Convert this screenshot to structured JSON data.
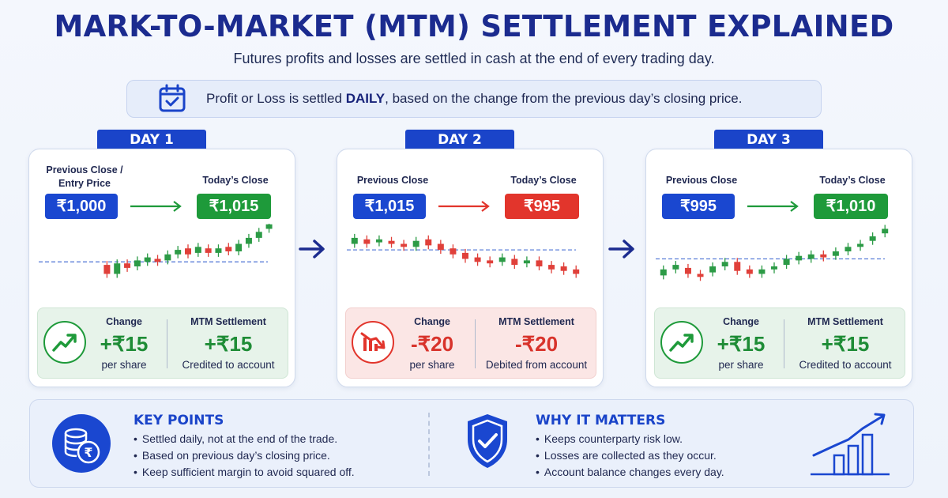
{
  "title": "MARK-TO-MARKET (MTM) SETTLEMENT EXPLAINED",
  "subtitle": "Futures profits and losses are settled in cash at the end of every trading day.",
  "banner": {
    "icon": "calendar-check-icon",
    "text_pre": "Profit or Loss is settled ",
    "text_bold": "DAILY",
    "text_post": ", based on the change from the previous day’s closing price."
  },
  "colors": {
    "primary": "#1a44c9",
    "gain": "#1e9a3a",
    "loss": "#e2352c",
    "navy": "#1b2b8f"
  },
  "days": [
    {
      "label": "DAY 1",
      "prev_label": "Previous Close / Entry Price",
      "prev_line1": "Previous Close /",
      "prev_line2": "Entry Price",
      "prev_value": "₹1,000",
      "today_label": "Today’s Close",
      "today_value": "₹1,015",
      "direction": "gain",
      "change_label": "Change",
      "change_value": "+₹15",
      "change_sub": "per share",
      "mtm_label": "MTM Settlement",
      "mtm_value": "+₹15",
      "mtm_sub": "Credited to account"
    },
    {
      "label": "DAY 2",
      "prev_line1": "Previous Close",
      "prev_line2": "",
      "prev_value": "₹1,015",
      "today_label": "Today’s Close",
      "today_value": "₹995",
      "direction": "loss",
      "change_label": "Change",
      "change_value": "-₹20",
      "change_sub": "per share",
      "mtm_label": "MTM Settlement",
      "mtm_value": "-₹20",
      "mtm_sub": "Debited from account"
    },
    {
      "label": "DAY 3",
      "prev_line1": "Previous Close",
      "prev_line2": "",
      "prev_value": "₹995",
      "today_label": "Today’s Close",
      "today_value": "₹1,010",
      "direction": "gain",
      "change_label": "Change",
      "change_value": "+₹15",
      "change_sub": "per share",
      "mtm_label": "MTM Settlement",
      "mtm_value": "+₹15",
      "mtm_sub": "Credited to account"
    }
  ],
  "key_points": {
    "icon": "rupee-coins-icon",
    "title": "KEY POINTS",
    "items": [
      "Settled daily, not at the end of the trade.",
      "Based on previous day’s closing price.",
      "Keep sufficient margin to avoid squared off."
    ]
  },
  "why_it_matters": {
    "icon": "shield-check-icon",
    "title": "WHY IT MATTERS",
    "items": [
      "Keeps counterparty risk low.",
      "Losses are collected as they occur.",
      "Account balance changes every day."
    ]
  }
}
